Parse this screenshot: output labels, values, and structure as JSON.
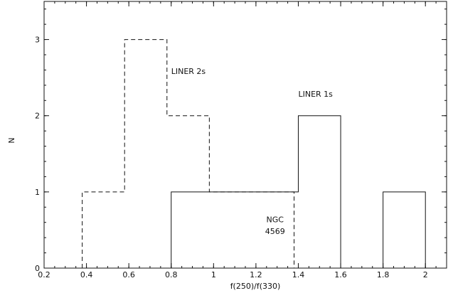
{
  "chart_data": {
    "type": "histogram",
    "xlabel": "f(250)/f(330)",
    "ylabel": "N",
    "xlim": [
      0.2,
      2.1
    ],
    "ylim": [
      0,
      3.5
    ],
    "xticks": [
      0.2,
      0.4,
      0.6,
      0.8,
      1,
      1.2,
      1.4,
      1.6,
      1.8,
      2
    ],
    "xtick_labels": [
      "0.2",
      "0.4",
      "0.6",
      "0.8",
      "1",
      "1.2",
      "1.4",
      "1.6",
      "1.8",
      "2"
    ],
    "yticks": [
      0,
      1,
      2,
      3
    ],
    "ytick_labels": [
      "0",
      "1",
      "2",
      "3"
    ],
    "grid": false,
    "series": [
      {
        "name": "LINER 2s",
        "style": "dashed",
        "bins": [
          {
            "x0": 0.38,
            "x1": 0.58,
            "count": 1
          },
          {
            "x0": 0.58,
            "x1": 0.78,
            "count": 3
          },
          {
            "x0": 0.78,
            "x1": 0.98,
            "count": 2
          },
          {
            "x0": 0.98,
            "x1": 1.18,
            "count": 1
          },
          {
            "x0": 1.18,
            "x1": 1.38,
            "count": 1
          }
        ]
      },
      {
        "name": "LINER 1s",
        "style": "solid",
        "bins": [
          {
            "x0": 0.8,
            "x1": 1.0,
            "count": 1
          },
          {
            "x0": 1.0,
            "x1": 1.2,
            "count": 1
          },
          {
            "x0": 1.2,
            "x1": 1.4,
            "count": 1
          },
          {
            "x0": 1.4,
            "x1": 1.6,
            "count": 2
          },
          {
            "x0": 1.8,
            "x1": 2.0,
            "count": 1
          }
        ]
      }
    ],
    "annotations": [
      {
        "text": "LINER 2s",
        "x": 0.8,
        "y": 2.55
      },
      {
        "text": "LINER 1s",
        "x": 1.4,
        "y": 2.25
      },
      {
        "text": "NGC",
        "x": 1.29,
        "y": 0.6
      },
      {
        "text": "4569",
        "x": 1.29,
        "y": 0.45
      }
    ]
  }
}
